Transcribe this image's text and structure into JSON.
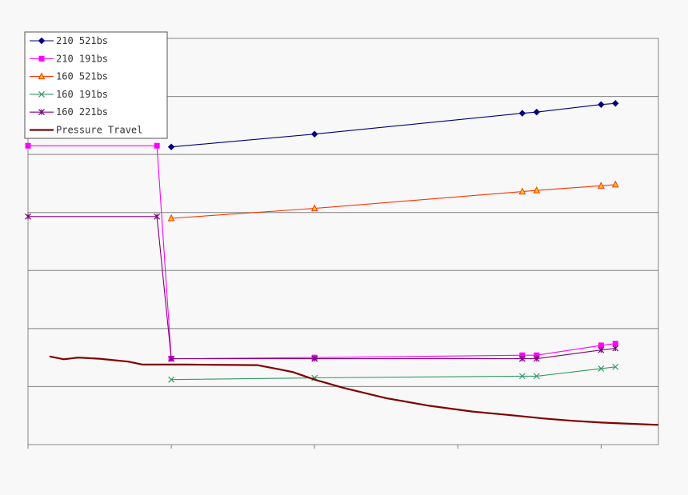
{
  "chart_data": {
    "type": "line",
    "title": "",
    "xlabel": "",
    "ylabel": "",
    "xlim": [
      0,
      4.4
    ],
    "ylim": [
      0,
      7
    ],
    "grid": "horizontal",
    "legend_position": "top-left",
    "series": [
      {
        "name": "210 521bs",
        "color": "#000080",
        "marker": "diamond",
        "points": [
          [
            1.0,
            5.13
          ],
          [
            2.0,
            5.35
          ],
          [
            3.45,
            5.71
          ],
          [
            3.55,
            5.73
          ],
          [
            4.0,
            5.86
          ],
          [
            4.1,
            5.88
          ]
        ]
      },
      {
        "name": "210 191bs",
        "color": "#ff00ff",
        "marker": "square",
        "points": [
          [
            0.0,
            5.15
          ],
          [
            0.9,
            5.15
          ],
          [
            1.0,
            1.48
          ],
          [
            2.0,
            1.5
          ],
          [
            3.45,
            1.54
          ],
          [
            3.55,
            1.54
          ],
          [
            4.0,
            1.71
          ],
          [
            4.1,
            1.74
          ]
        ]
      },
      {
        "name": "160 521bs",
        "color": "#ff3300",
        "marker": "triangle",
        "points": [
          [
            1.0,
            3.9
          ],
          [
            2.0,
            4.07
          ],
          [
            3.45,
            4.36
          ],
          [
            3.55,
            4.38
          ],
          [
            4.0,
            4.46
          ],
          [
            4.1,
            4.48
          ]
        ]
      },
      {
        "name": "160 191bs",
        "color": "#339966",
        "marker": "x",
        "points": [
          [
            1.0,
            1.12
          ],
          [
            2.0,
            1.15
          ],
          [
            3.45,
            1.18
          ],
          [
            3.55,
            1.18
          ],
          [
            4.0,
            1.31
          ],
          [
            4.1,
            1.34
          ]
        ]
      },
      {
        "name": "160 221bs",
        "color": "#800080",
        "marker": "star",
        "points": [
          [
            0.0,
            3.93
          ],
          [
            0.9,
            3.93
          ],
          [
            1.0,
            1.48
          ],
          [
            2.0,
            1.48
          ],
          [
            3.45,
            1.48
          ],
          [
            3.55,
            1.48
          ],
          [
            4.0,
            1.63
          ],
          [
            4.1,
            1.66
          ]
        ]
      },
      {
        "name": "Pressure Travel",
        "color": "#800000",
        "marker": "none",
        "points": [
          [
            0.15,
            1.52
          ],
          [
            0.25,
            1.47
          ],
          [
            0.35,
            1.5
          ],
          [
            0.5,
            1.48
          ],
          [
            0.7,
            1.43
          ],
          [
            0.8,
            1.38
          ],
          [
            1.1,
            1.38
          ],
          [
            1.6,
            1.37
          ],
          [
            1.75,
            1.3
          ],
          [
            1.85,
            1.25
          ],
          [
            2.0,
            1.12
          ],
          [
            2.2,
            0.98
          ],
          [
            2.5,
            0.8
          ],
          [
            2.8,
            0.67
          ],
          [
            3.1,
            0.57
          ],
          [
            3.4,
            0.5
          ],
          [
            3.6,
            0.45
          ],
          [
            3.8,
            0.41
          ],
          [
            4.0,
            0.38
          ],
          [
            4.2,
            0.36
          ],
          [
            4.4,
            0.34
          ]
        ]
      }
    ]
  }
}
